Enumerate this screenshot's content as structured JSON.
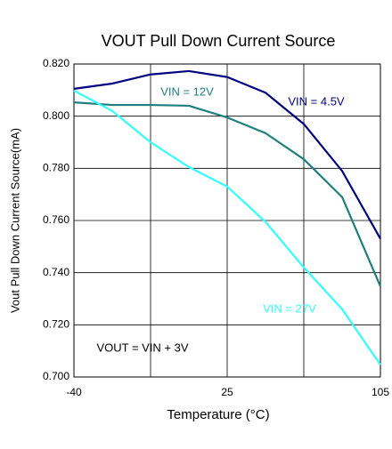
{
  "chart_data": {
    "type": "line",
    "title": "VOUT Pull Down Current Source",
    "x_label": "Temperature (°C)",
    "y_label": "Vout Pull Down Current Source(mA)",
    "annotation": "VOUT = VIN + 3V",
    "categories": [
      "-40",
      null,
      null,
      null,
      "25",
      null,
      null,
      null,
      "105"
    ],
    "series": [
      {
        "name": "VIN = 4.5V",
        "color": "#000080",
        "values": [
          0.8105,
          0.8125,
          0.816,
          0.8173,
          0.815,
          0.809,
          0.797,
          0.779,
          0.753
        ]
      },
      {
        "name": "VIN = 12V",
        "color": "#1f7f7f",
        "values": [
          0.8053,
          0.8043,
          0.8043,
          0.804,
          0.7995,
          0.7935,
          0.7835,
          0.769,
          0.7347
        ]
      },
      {
        "name": "VIN = 27V",
        "color": "#33ffff",
        "values": [
          0.8098,
          0.802,
          0.79,
          0.7805,
          0.773,
          0.7595,
          0.742,
          0.726,
          0.7047
        ]
      }
    ],
    "ylim": [
      0.7,
      0.82
    ],
    "yticks": [
      {
        "value": 0.7,
        "label": "0.700"
      },
      {
        "value": 0.72,
        "label": "0.720"
      },
      {
        "value": 0.74,
        "label": "0.740"
      },
      {
        "value": 0.76,
        "label": "0.760"
      },
      {
        "value": 0.78,
        "label": "0.780"
      },
      {
        "value": 0.8,
        "label": "0.800"
      },
      {
        "value": 0.82,
        "label": "0.820"
      }
    ],
    "grid": true
  }
}
